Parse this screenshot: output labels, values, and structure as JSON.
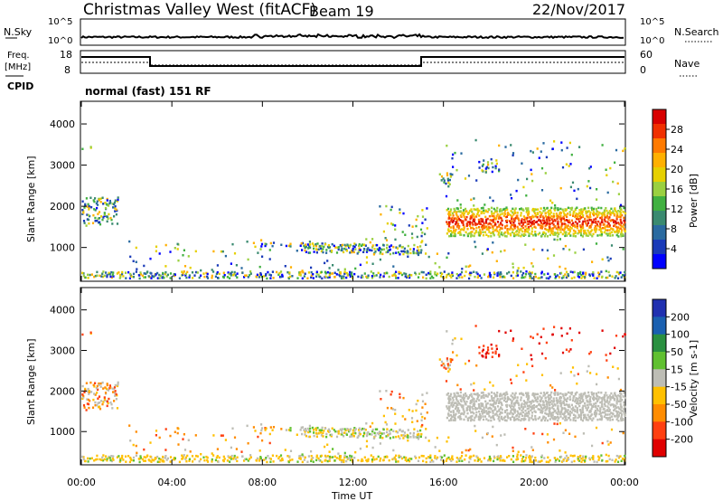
{
  "header": {
    "station": "Christmas Valley West (fitACF)",
    "beam": "Beam 19",
    "date": "22/Nov/2017"
  },
  "aux_panels": {
    "nsky_label": "N.Sky",
    "nsky_ticks": [
      "10^5",
      "10^0"
    ],
    "nsearch_label": "N.Search",
    "nsearch_ticks": [
      "10^5",
      "10^0"
    ],
    "freq_label_1": "Freq.",
    "freq_label_2": "[MHz]",
    "freq_ticks": [
      "18",
      "8"
    ],
    "nave_label": "Nave",
    "nave_ticks": [
      "60",
      "0"
    ],
    "cpid_label": "CPID",
    "cpid_value": "normal (fast) 151 RF"
  },
  "chart_data": [
    {
      "type": "heatmap",
      "title": "",
      "xlabel": "",
      "ylabel": "Slant Range [km]",
      "xlim": [
        0,
        24
      ],
      "ylim": [
        180,
        4550
      ],
      "yticks": [
        "4000",
        "3000",
        "2000",
        "1000"
      ],
      "colorbar": {
        "label": "Power [dB]",
        "ticks": [
          "28",
          "24",
          "20",
          "16",
          "12",
          "8",
          "4"
        ],
        "colors": [
          "#d80000",
          "#f03000",
          "#ff7a00",
          "#ffb000",
          "#e6d000",
          "#9ad040",
          "#40b040",
          "#3a8a70",
          "#2a6aa0",
          "#1a3ab8",
          "#0000ff"
        ]
      }
    },
    {
      "type": "heatmap",
      "title": "",
      "xlabel": "Time UT",
      "ylabel": "Slant Range [km]",
      "xlim": [
        0,
        24
      ],
      "ylim": [
        180,
        4550
      ],
      "xticks": [
        "00:00",
        "04:00",
        "08:00",
        "12:00",
        "16:00",
        "20:00",
        "00:00"
      ],
      "yticks": [
        "4000",
        "3000",
        "2000",
        "1000"
      ],
      "colorbar": {
        "label": "Velocity [m s-1]",
        "ticks": [
          "200",
          "100",
          "50",
          "15",
          "-15",
          "-50",
          "-100",
          "-200"
        ],
        "colors": [
          "#2030b0",
          "#1a60b0",
          "#2a9040",
          "#60c030",
          "#bdbdb5",
          "#ffc000",
          "#ff8c00",
          "#ff4010",
          "#e00000"
        ]
      }
    }
  ]
}
